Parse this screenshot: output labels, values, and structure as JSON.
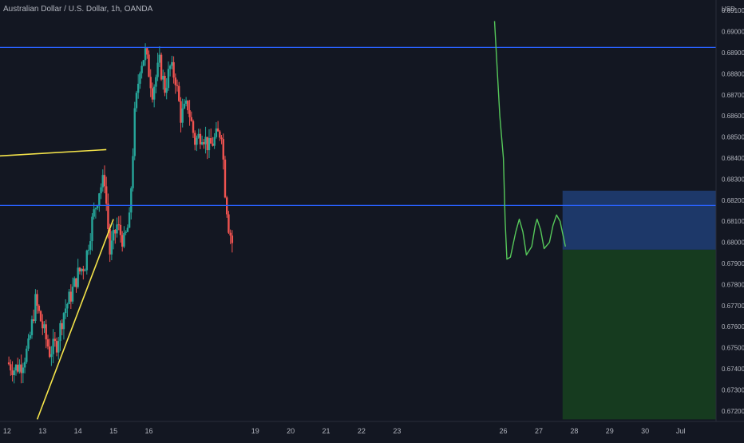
{
  "chart_data": {
    "type": "candlestick",
    "title": "Australian Dollar / U.S. Dollar, 1h, OANDA",
    "currency_label": "USD",
    "ylim": [
      0.6715,
      0.6915
    ],
    "y_ticks": [
      "0.69100",
      "0.69000",
      "0.68900",
      "0.68800",
      "0.68700",
      "0.68600",
      "0.68500",
      "0.68400",
      "0.68300",
      "0.68200",
      "0.68100",
      "0.68000",
      "0.67900",
      "0.67800",
      "0.67700",
      "0.67600",
      "0.67500",
      "0.67400",
      "0.67300",
      "0.67200"
    ],
    "x_ticks": [
      {
        "label": "12",
        "day": 12
      },
      {
        "label": "13",
        "day": 13
      },
      {
        "label": "14",
        "day": 14
      },
      {
        "label": "15",
        "day": 15
      },
      {
        "label": "16",
        "day": 16
      },
      {
        "label": "19",
        "day": 19
      },
      {
        "label": "20",
        "day": 20
      },
      {
        "label": "21",
        "day": 21
      },
      {
        "label": "22",
        "day": 22
      },
      {
        "label": "23",
        "day": 23
      },
      {
        "label": "26",
        "day": 26
      },
      {
        "label": "27",
        "day": 27
      },
      {
        "label": "28",
        "day": 28
      },
      {
        "label": "29",
        "day": 29
      },
      {
        "label": "30",
        "day": 30
      },
      {
        "label": "Jul",
        "day": 31
      }
    ],
    "xlim": [
      11.8,
      32.0
    ],
    "price_path": [
      [
        12.0,
        0.6743
      ],
      [
        12.2,
        0.674
      ],
      [
        12.4,
        0.6742
      ],
      [
        12.6,
        0.675
      ],
      [
        12.8,
        0.6772
      ],
      [
        13.0,
        0.676
      ],
      [
        13.2,
        0.6748
      ],
      [
        13.4,
        0.6752
      ],
      [
        13.6,
        0.6767
      ],
      [
        13.8,
        0.6775
      ],
      [
        14.0,
        0.6785
      ],
      [
        14.2,
        0.679
      ],
      [
        14.4,
        0.681
      ],
      [
        14.6,
        0.6825
      ],
      [
        14.75,
        0.683
      ],
      [
        14.9,
        0.6795
      ],
      [
        15.1,
        0.6808
      ],
      [
        15.3,
        0.68
      ],
      [
        15.45,
        0.681
      ],
      [
        15.6,
        0.686
      ],
      [
        15.75,
        0.6884
      ],
      [
        15.9,
        0.689
      ],
      [
        16.1,
        0.6872
      ],
      [
        16.3,
        0.6885
      ],
      [
        16.45,
        0.6873
      ],
      [
        16.6,
        0.6883
      ],
      [
        16.75,
        0.6878
      ],
      [
        16.9,
        0.686
      ],
      [
        17.1,
        0.6865
      ],
      [
        17.3,
        0.6848
      ],
      [
        17.5,
        0.6852
      ],
      [
        17.7,
        0.6845
      ],
      [
        17.9,
        0.685
      ],
      [
        18.05,
        0.6853
      ],
      [
        18.15,
        0.6825
      ],
      [
        18.25,
        0.6808
      ],
      [
        18.35,
        0.68
      ]
    ],
    "annotations": {
      "horizontal_lines": [
        {
          "y": 0.68925,
          "color": "#2962ff"
        },
        {
          "y": 0.68175,
          "color": "#2962ff"
        }
      ],
      "trend_lines": [
        {
          "from": [
            11.8,
            0.6841
          ],
          "to": [
            14.8,
            0.6844
          ],
          "color": "#f5e44a"
        },
        {
          "from": [
            12.85,
            0.6716
          ],
          "to": [
            15.0,
            0.6811
          ],
          "color": "#f5e44a"
        }
      ],
      "projection": {
        "color": "#56c85a",
        "points": [
          [
            25.75,
            0.6905
          ],
          [
            25.9,
            0.686
          ],
          [
            26.0,
            0.684
          ],
          [
            26.05,
            0.681
          ],
          [
            26.1,
            0.6792
          ],
          [
            26.2,
            0.6793
          ],
          [
            26.35,
            0.6805
          ],
          [
            26.45,
            0.6811
          ],
          [
            26.55,
            0.6805
          ],
          [
            26.65,
            0.6794
          ],
          [
            26.8,
            0.6798
          ],
          [
            26.9,
            0.6808
          ],
          [
            26.95,
            0.6811
          ],
          [
            27.05,
            0.6806
          ],
          [
            27.15,
            0.6797
          ],
          [
            27.3,
            0.68
          ],
          [
            27.4,
            0.6808
          ],
          [
            27.5,
            0.6813
          ],
          [
            27.6,
            0.681
          ],
          [
            27.75,
            0.6798
          ]
        ]
      },
      "position": {
        "x_start": 27.67,
        "x_end": 32.0,
        "top": 0.68245,
        "entry": 0.67965,
        "bottom": 0.6716,
        "upper_color": "#1e3a6e",
        "lower_color": "#163d20"
      }
    },
    "colors": {
      "up": "#26a69a",
      "down": "#ef5350",
      "background": "#131722",
      "grid": "#1c2030"
    },
    "grid": false,
    "xlabel": "",
    "ylabel": ""
  }
}
